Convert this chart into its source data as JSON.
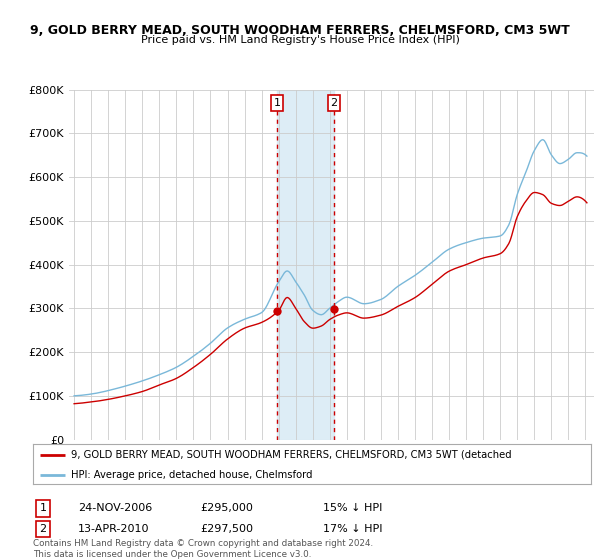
{
  "title_line1": "9, GOLD BERRY MEAD, SOUTH WOODHAM FERRERS, CHELMSFORD, CM3 5WT",
  "title_line2": "Price paid vs. HM Land Registry's House Price Index (HPI)",
  "background_color": "#ffffff",
  "plot_bg_color": "#ffffff",
  "grid_color": "#cccccc",
  "hpi_color": "#7ab8d9",
  "price_color": "#cc0000",
  "transaction1_x": 2006.9,
  "transaction2_x": 2010.25,
  "transaction1_price": 295000,
  "transaction2_price": 297500,
  "legend_label_price": "9, GOLD BERRY MEAD, SOUTH WOODHAM FERRERS, CHELMSFORD, CM3 5WT (detached",
  "legend_label_hpi": "HPI: Average price, detached house, Chelmsford",
  "table_row1": [
    "1",
    "24-NOV-2006",
    "£295,000",
    "15% ↓ HPI"
  ],
  "table_row2": [
    "2",
    "13-APR-2010",
    "£297,500",
    "17% ↓ HPI"
  ],
  "footer_text": "Contains HM Land Registry data © Crown copyright and database right 2024.\nThis data is licensed under the Open Government Licence v3.0.",
  "ylim": [
    0,
    800000
  ],
  "yticks": [
    0,
    100000,
    200000,
    300000,
    400000,
    500000,
    600000,
    700000,
    800000
  ],
  "xlim_start": 1994.7,
  "xlim_end": 2025.5
}
